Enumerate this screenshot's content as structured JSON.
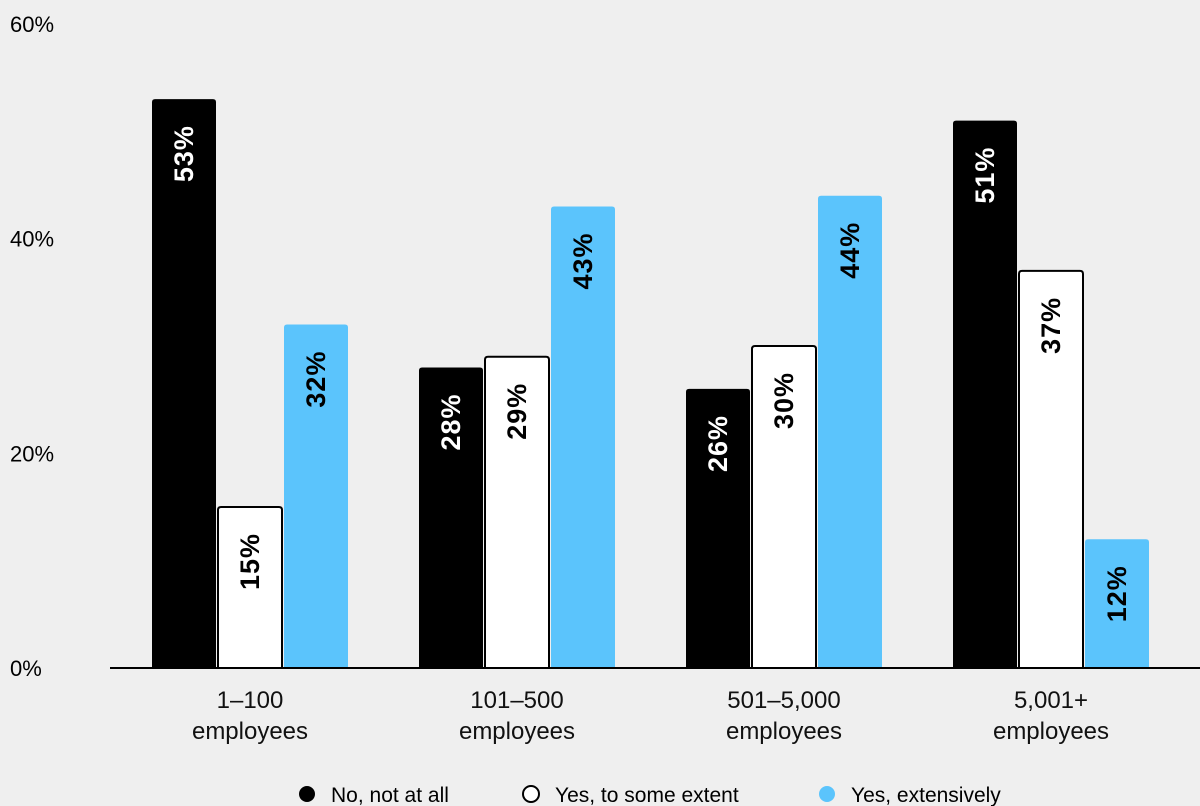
{
  "colors": {
    "background": "#efefef",
    "no_not_at_all": "#000000",
    "yes_some_extent": "#ffffff",
    "yes_extensively": "#5bc4fc"
  },
  "chart_data": {
    "type": "bar",
    "title": "",
    "xlabel": "",
    "ylabel": "",
    "ylim": [
      0,
      60
    ],
    "yticks": [
      "0%",
      "20%",
      "40%",
      "60%"
    ],
    "categories": [
      [
        "1–100",
        "employees"
      ],
      [
        "101–500",
        "employees"
      ],
      [
        "501–5,000",
        "employees"
      ],
      [
        "5,001+",
        "employees"
      ]
    ],
    "series": [
      {
        "name": "No, not at all",
        "color": "#000000",
        "style": "filled",
        "values": [
          53,
          28,
          26,
          51
        ],
        "labels": [
          "53%",
          "28%",
          "26%",
          "51%"
        ]
      },
      {
        "name": "Yes, to some extent",
        "color": "#ffffff",
        "style": "outline",
        "values": [
          15,
          29,
          30,
          37
        ],
        "labels": [
          "15%",
          "29%",
          "30%",
          "37%"
        ]
      },
      {
        "name": "Yes, extensively",
        "color": "#5bc4fc",
        "style": "filled",
        "values": [
          32,
          43,
          44,
          12
        ],
        "labels": [
          "32%",
          "43%",
          "44%",
          "12%"
        ]
      }
    ],
    "legend_position": "bottom",
    "grid": false
  }
}
